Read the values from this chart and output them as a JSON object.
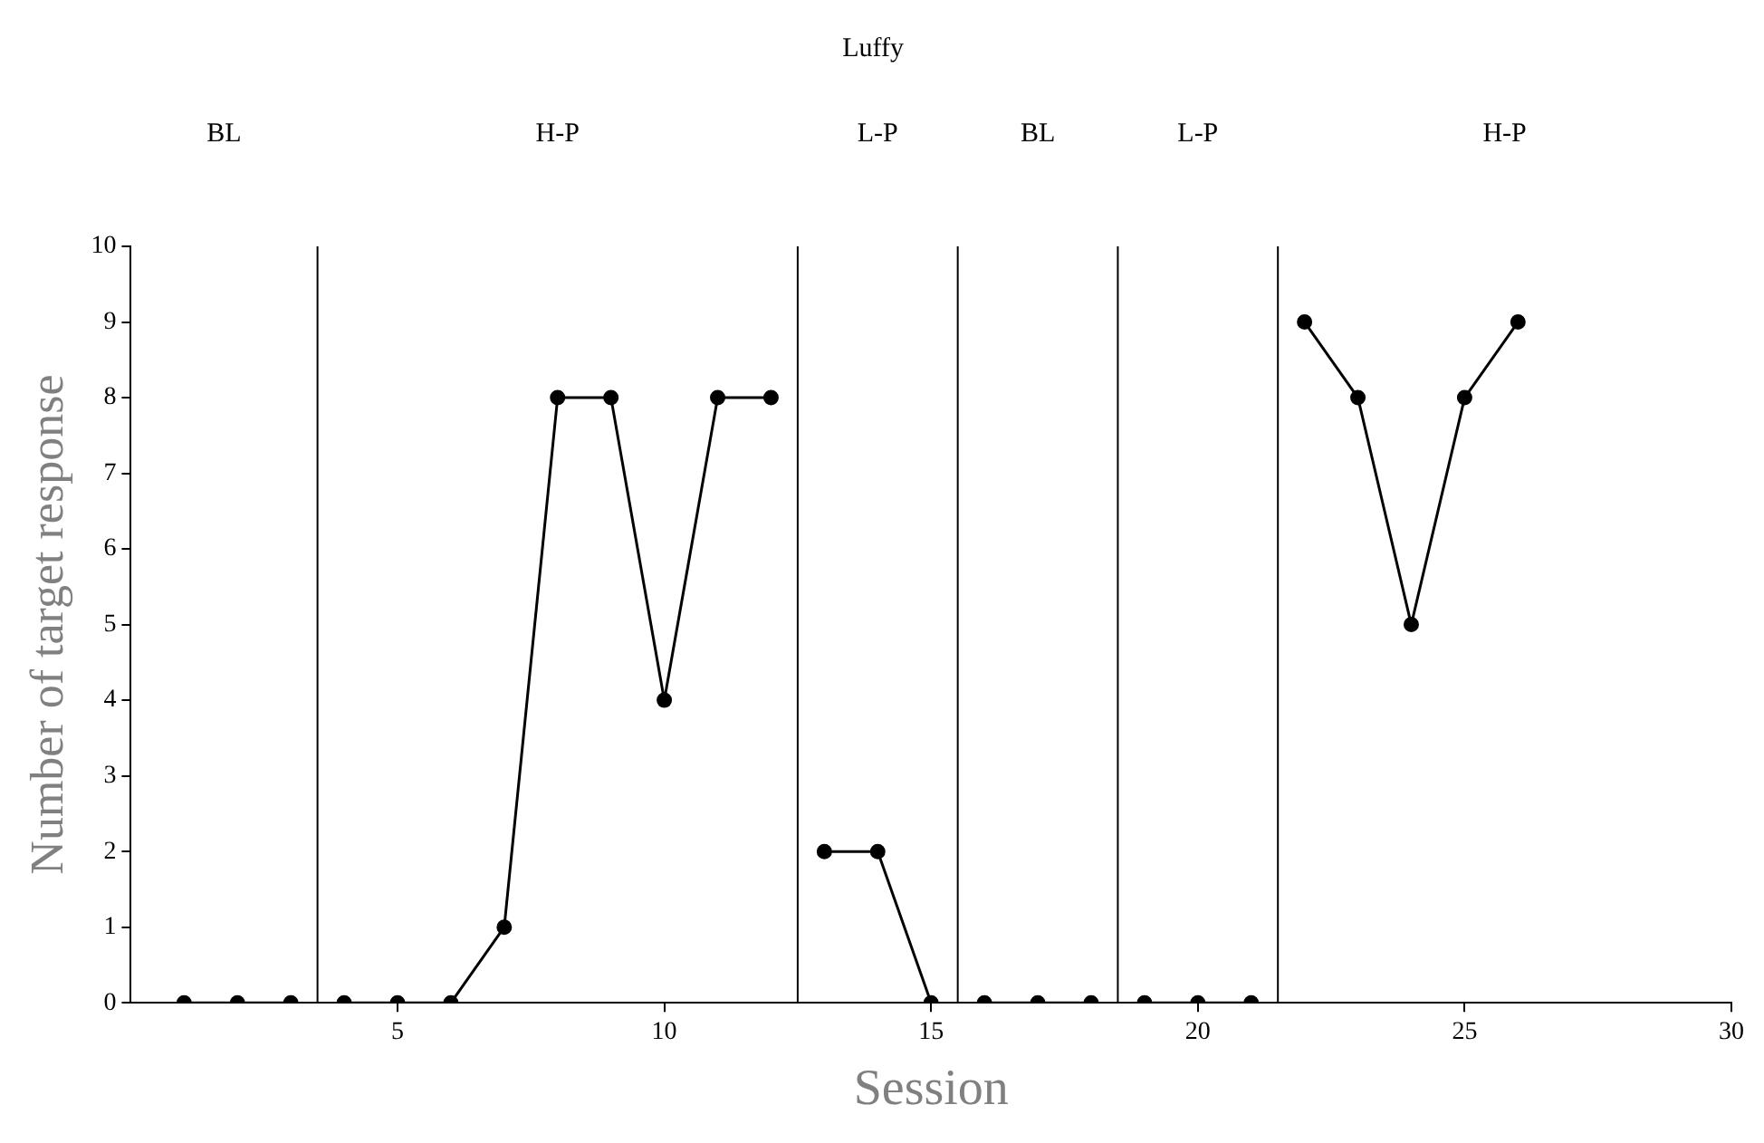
{
  "chart_data": {
    "type": "line",
    "title": "Luffy",
    "xlabel": "Session",
    "ylabel": "Number of target response",
    "xlim": [
      0,
      30
    ],
    "xticks": [
      5,
      10,
      15,
      20,
      25,
      30
    ],
    "ylim": [
      0,
      10
    ],
    "yticks": [
      0,
      1,
      2,
      3,
      4,
      5,
      6,
      7,
      8,
      9,
      10
    ],
    "grid": false,
    "legend": false,
    "marker": "circle",
    "line_style": "solid",
    "series": [
      {
        "color": "#000000",
        "x": [
          1,
          2,
          3
        ],
        "values": [
          0,
          0,
          0
        ]
      },
      {
        "color": "#000000",
        "x": [
          4,
          5,
          6,
          7,
          8,
          9,
          10,
          11,
          12
        ],
        "values": [
          0,
          0,
          0,
          1,
          8,
          8,
          4,
          8,
          8
        ]
      },
      {
        "color": "#000000",
        "x": [
          13,
          14,
          15
        ],
        "values": [
          2,
          2,
          0
        ]
      },
      {
        "color": "#000000",
        "x": [
          16,
          17,
          18
        ],
        "values": [
          0,
          0,
          0
        ]
      },
      {
        "color": "#000000",
        "x": [
          19,
          20,
          21
        ],
        "values": [
          0,
          0,
          0
        ]
      },
      {
        "color": "#000000",
        "x": [
          22,
          23,
          24,
          25,
          26
        ],
        "values": [
          9,
          8,
          5,
          8,
          9
        ]
      }
    ],
    "ref_lines": [
      {
        "axis": "x",
        "value": 3.5,
        "color": "#000000"
      },
      {
        "axis": "x",
        "value": 12.5,
        "color": "#000000"
      },
      {
        "axis": "x",
        "value": 15.5,
        "color": "#000000"
      },
      {
        "axis": "x",
        "value": 18.5,
        "color": "#000000"
      },
      {
        "axis": "x",
        "value": 21.5,
        "color": "#000000"
      }
    ],
    "annotations": [
      "BL",
      "H-P",
      "L-P",
      "BL",
      "L-P",
      "H-P"
    ]
  }
}
